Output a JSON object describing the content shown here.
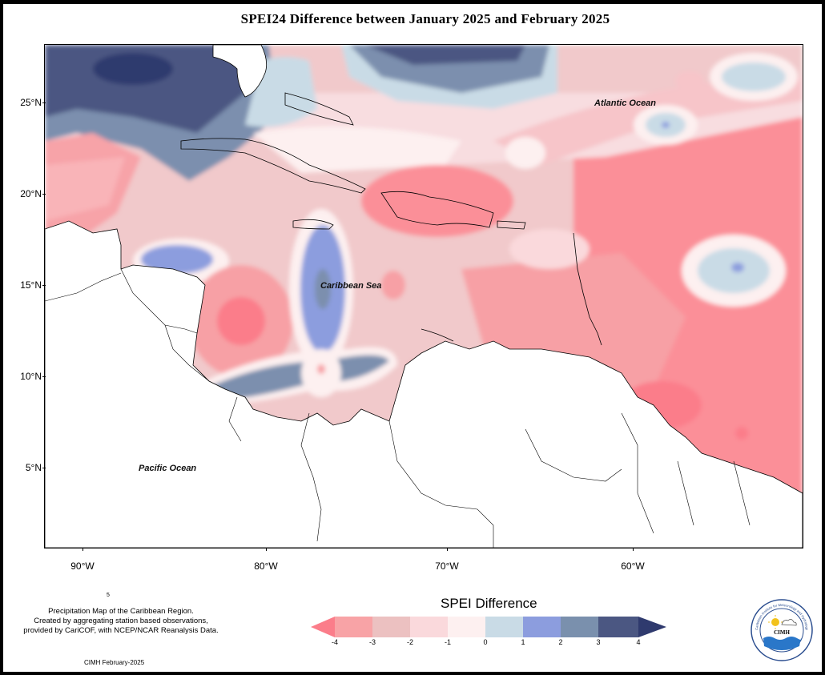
{
  "title": "SPEI24 Difference between January 2025 and February 2025",
  "map": {
    "lat_labels": [
      "25°N",
      "20°N",
      "15°N",
      "10°N",
      "5°N"
    ],
    "lon_labels": [
      "90°W",
      "80°W",
      "70°W",
      "60°W"
    ],
    "ocean_labels": {
      "atlantic": "Atlantic Ocean",
      "caribbean": "Caribbean Sea",
      "pacific": "Pacific Ocean"
    }
  },
  "legend": {
    "title": "SPEI Difference",
    "labels": [
      "-4",
      "-3",
      "-2",
      "-1",
      "0",
      "1",
      "2",
      "3",
      "4"
    ],
    "colors": [
      "#fb7d8a",
      "#f8a3a6",
      "#ecc1c1",
      "#fad9dc",
      "#fdf0f0",
      "#c9dbe6",
      "#8c9dde",
      "#7a90ad",
      "#4b5782",
      "#2f3a6e"
    ]
  },
  "footer": {
    "credit_lines": [
      "Precipitation Map of the Caribbean Region.",
      "Created by aggregating station based observations,",
      "provided by CariCOF, with NCEP/NCAR Reanalysis Data."
    ],
    "dot_mark": "5",
    "date": "CIMH February-2025"
  },
  "logo": {
    "org_name": "CIMH",
    "ring_text": "Caribbean Institute for Meteorology and Hydrology"
  }
}
